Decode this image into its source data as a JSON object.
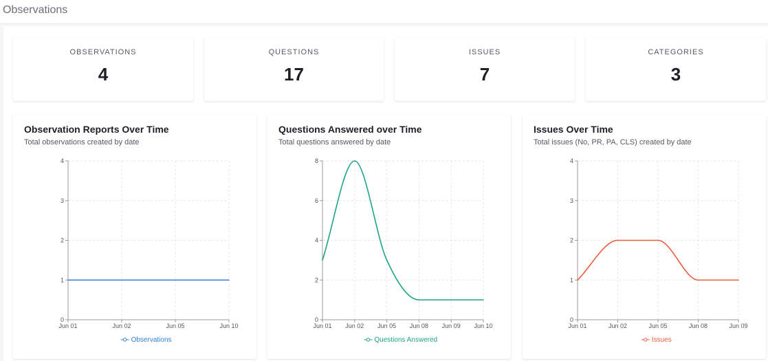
{
  "header": {
    "title": "Observations"
  },
  "stats": [
    {
      "label": "OBSERVATIONS",
      "value": "4"
    },
    {
      "label": "QUESTIONS",
      "value": "17"
    },
    {
      "label": "ISSUES",
      "value": "7"
    },
    {
      "label": "CATEGORIES",
      "value": "3"
    }
  ],
  "charts": [
    {
      "title": "Observation Reports Over Time",
      "subtitle": "Total observations created by date"
    },
    {
      "title": "Questions Answered over Time",
      "subtitle": "Total questions answered by date"
    },
    {
      "title": "Issues Over Time",
      "subtitle": "Total issues (No, PR, PA, CLS) created by date"
    }
  ],
  "chart_data": [
    {
      "type": "line",
      "title": "Observation Reports Over Time",
      "subtitle": "Total observations created by date",
      "categories": [
        "Jun 01",
        "Jun 02",
        "Jun 05",
        "Jun 10"
      ],
      "series": [
        {
          "name": "Observations",
          "values": [
            1,
            1,
            1,
            1
          ],
          "color": "#2f7fd8"
        }
      ],
      "ylim": [
        0,
        4
      ],
      "yticks": [
        0,
        1,
        2,
        3,
        4
      ],
      "grid": true,
      "legend": "bottom"
    },
    {
      "type": "line",
      "title": "Questions Answered over Time",
      "subtitle": "Total questions answered by date",
      "categories": [
        "Jun 01",
        "Jun 02",
        "Jun 05",
        "Jun 08",
        "Jun 09",
        "Jun 10"
      ],
      "series": [
        {
          "name": "Questions Answered",
          "values": [
            3,
            8,
            3,
            1,
            1,
            1
          ],
          "color": "#1aa386"
        }
      ],
      "ylim": [
        0,
        8
      ],
      "yticks": [
        0,
        2,
        4,
        6,
        8
      ],
      "grid": true,
      "legend": "bottom"
    },
    {
      "type": "line",
      "title": "Issues Over Time",
      "subtitle": "Total issues (No, PR, PA, CLS) created by date",
      "categories": [
        "Jun 01",
        "Jun 02",
        "Jun 05",
        "Jun 08",
        "Jun 09"
      ],
      "series": [
        {
          "name": "Issues",
          "values": [
            1,
            2,
            2,
            1,
            1
          ],
          "color": "#ec5a3c"
        }
      ],
      "ylim": [
        0,
        4
      ],
      "yticks": [
        0,
        1,
        2,
        3,
        4
      ],
      "grid": true,
      "legend": "bottom"
    }
  ]
}
